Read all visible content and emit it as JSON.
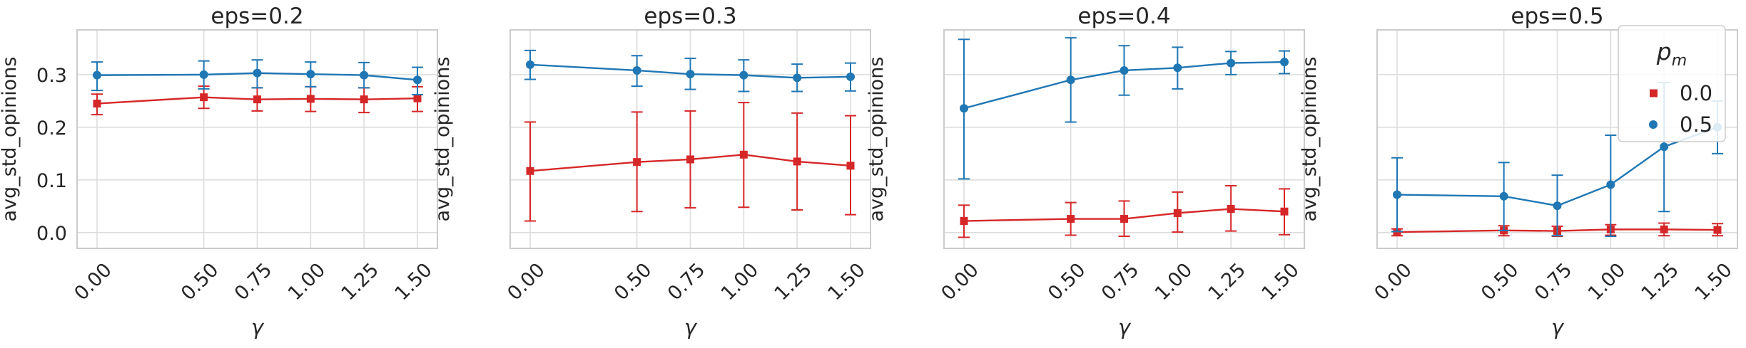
{
  "chart_data": {
    "type": "line",
    "layout": "1x4 subplots, shared x ticks, error bars",
    "x": [
      0.0,
      0.5,
      0.75,
      1.0,
      1.25,
      1.5
    ],
    "x_tick_labels": [
      "0.00",
      "0.50",
      "0.75",
      "1.00",
      "1.25",
      "1.50"
    ],
    "xlabel": "γ",
    "ylabel": "avg_std_opinions",
    "ylim": [
      -0.03,
      0.385
    ],
    "y_ticks": [
      0.0,
      0.1,
      0.2,
      0.3
    ],
    "y_tick_labels": [
      "0.0",
      "0.1",
      "0.2",
      "0.3"
    ],
    "grid": true,
    "legend": {
      "title": "p_m",
      "title_main": "p",
      "title_sub": "m",
      "placement": "top-right of last panel",
      "entries": [
        {
          "label": "0.0",
          "color": "#d62728",
          "marker": "square"
        },
        {
          "label": "0.5",
          "color": "#1f77b4",
          "marker": "circle"
        }
      ]
    },
    "panels": [
      {
        "title": "eps=0.2",
        "show_y_tick_labels": true,
        "series": [
          {
            "name": "0.0",
            "color": "#d62728",
            "marker": "square",
            "values": [
              0.245,
              0.257,
              0.253,
              0.254,
              0.253,
              0.255
            ],
            "lower": [
              0.224,
              0.236,
              0.231,
              0.23,
              0.228,
              0.23
            ],
            "upper": [
              0.263,
              0.278,
              0.275,
              0.277,
              0.275,
              0.277
            ]
          },
          {
            "name": "0.5",
            "color": "#1f77b4",
            "marker": "circle",
            "values": [
              0.299,
              0.3,
              0.303,
              0.301,
              0.299,
              0.29
            ],
            "lower": [
              0.27,
              0.273,
              0.275,
              0.277,
              0.275,
              0.262
            ],
            "upper": [
              0.324,
              0.326,
              0.328,
              0.324,
              0.323,
              0.314
            ]
          }
        ]
      },
      {
        "title": "eps=0.3",
        "show_y_tick_labels": false,
        "series": [
          {
            "name": "0.0",
            "color": "#d62728",
            "marker": "square",
            "values": [
              0.117,
              0.134,
              0.139,
              0.148,
              0.135,
              0.127
            ],
            "lower": [
              0.022,
              0.04,
              0.047,
              0.048,
              0.043,
              0.034
            ],
            "upper": [
              0.21,
              0.229,
              0.231,
              0.247,
              0.227,
              0.222
            ]
          },
          {
            "name": "0.5",
            "color": "#1f77b4",
            "marker": "circle",
            "values": [
              0.319,
              0.308,
              0.301,
              0.299,
              0.294,
              0.296
            ],
            "lower": [
              0.291,
              0.278,
              0.272,
              0.268,
              0.268,
              0.269
            ],
            "upper": [
              0.346,
              0.336,
              0.331,
              0.328,
              0.32,
              0.322
            ]
          }
        ]
      },
      {
        "title": "eps=0.4",
        "show_y_tick_labels": false,
        "series": [
          {
            "name": "0.0",
            "color": "#d62728",
            "marker": "square",
            "values": [
              0.022,
              0.026,
              0.026,
              0.037,
              0.045,
              0.04
            ],
            "lower": [
              -0.009,
              -0.005,
              -0.007,
              0.001,
              0.003,
              -0.004
            ],
            "upper": [
              0.052,
              0.057,
              0.06,
              0.077,
              0.089,
              0.083
            ]
          },
          {
            "name": "0.5",
            "color": "#1f77b4",
            "marker": "circle",
            "values": [
              0.236,
              0.29,
              0.308,
              0.313,
              0.322,
              0.324
            ],
            "lower": [
              0.102,
              0.21,
              0.261,
              0.273,
              0.3,
              0.302
            ],
            "upper": [
              0.367,
              0.37,
              0.355,
              0.352,
              0.344,
              0.345
            ]
          }
        ]
      },
      {
        "title": "eps=0.5",
        "show_y_tick_labels": false,
        "series": [
          {
            "name": "0.0",
            "color": "#d62728",
            "marker": "square",
            "values": [
              0.001,
              0.004,
              0.003,
              0.006,
              0.006,
              0.005
            ],
            "lower": [
              -0.006,
              -0.006,
              -0.007,
              -0.005,
              -0.006,
              -0.006
            ],
            "upper": [
              0.007,
              0.013,
              0.012,
              0.015,
              0.018,
              0.017
            ]
          },
          {
            "name": "0.5",
            "color": "#1f77b4",
            "marker": "circle",
            "values": [
              0.072,
              0.069,
              0.051,
              0.091,
              0.163,
              0.2
            ],
            "lower": [
              0.002,
              0.004,
              -0.006,
              -0.007,
              0.04,
              0.15
            ],
            "upper": [
              0.142,
              0.133,
              0.109,
              0.185,
              0.285,
              0.25
            ]
          }
        ]
      }
    ]
  }
}
